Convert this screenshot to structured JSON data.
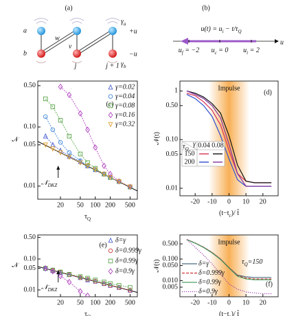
{
  "panel_a": {
    "label": "(a)",
    "row_a": "a",
    "row_b": "b",
    "w": "w",
    "v": "v",
    "site_j": "j",
    "site_j1": "j + 1",
    "gamma_a": [
      {
        "t": "γ"
      },
      {
        "sub": "a"
      }
    ],
    "gamma_b": [
      {
        "t": "γ"
      },
      {
        "sub": "b"
      }
    ],
    "plus_u": "+u",
    "minus_u": "−u"
  },
  "panel_b": {
    "label": "(b)",
    "equation": [
      {
        "t": "u(t) = u"
      },
      {
        "sub": "i"
      },
      {
        "t": " − t/τ"
      },
      {
        "sub": "Q"
      }
    ],
    "axis": "u",
    "u_f": [
      {
        "t": "u"
      },
      {
        "sub": "f"
      },
      {
        "t": " = −2"
      }
    ],
    "u_c": [
      {
        "t": "u"
      },
      {
        "sub": "c"
      },
      {
        "t": " = 0"
      }
    ],
    "u_i": [
      {
        "t": "u"
      },
      {
        "sub": "i"
      },
      {
        "t": " = 2"
      }
    ]
  },
  "chart_data": [
    {
      "type": "scatter",
      "panel_label": "(c)",
      "x_label": [
        {
          "t": "τ"
        },
        {
          "sub": "Q"
        }
      ],
      "y_label": [
        {
          "t": "𝒩"
        }
      ],
      "xlog": true,
      "ylog": true,
      "xlim": [
        7,
        700
      ],
      "ylim": [
        0.006,
        0.6
      ],
      "xticks": [
        20,
        50,
        100,
        200,
        500
      ],
      "yticks": [
        0.01,
        0.05,
        {
          "value": 0.1,
          "label": "0.10"
        },
        {
          "value": 0.5,
          "label": "0.50"
        }
      ],
      "legend": "upper right",
      "x": [
        10,
        14,
        20,
        30,
        50,
        70,
        100,
        150,
        200,
        300,
        500
      ],
      "series": [
        {
          "name": "γ=0.02",
          "color": "#4a5fd0",
          "marker": "triangle",
          "values": [
            0.07,
            0.05,
            0.04,
            0.032,
            0.026,
            0.022,
            0.019,
            0.016,
            0.014,
            0.012,
            0.0097
          ]
        },
        {
          "name": "γ=0.04",
          "color": "#3f86d8",
          "marker": "circle",
          "values": [
            0.15,
            0.09,
            0.055,
            0.037,
            0.027,
            0.022,
            0.019,
            0.016,
            0.014,
            0.012,
            0.0097
          ]
        },
        {
          "name": "γ=0.08",
          "color": "#5aa64a",
          "marker": "square",
          "values": [
            0.3,
            0.22,
            0.13,
            0.07,
            0.035,
            0.025,
            0.02,
            0.016,
            0.014,
            0.012,
            0.0097
          ]
        },
        {
          "name": "γ=0.16",
          "color": "#b040c0",
          "marker": "diamond",
          "values": [
            null,
            null,
            0.48,
            0.35,
            0.17,
            0.09,
            0.045,
            0.022,
            0.016,
            0.012,
            0.0097
          ]
        },
        {
          "name": "γ=0.32",
          "color": "#e0a030",
          "marker": "triangle-down",
          "values": [
            0.05,
            0.043,
            0.037,
            0.031,
            0.025,
            0.022,
            0.019,
            0.016,
            0.014,
            0.012,
            0.0097
          ]
        }
      ],
      "reference_line": {
        "x": [
          7,
          700
        ],
        "values": [
          0.057,
          0.0083
        ],
        "color": "#000000"
      },
      "annotation": [
        {
          "t": "𝒩"
        },
        {
          "sub": "DKZ"
        }
      ]
    },
    {
      "type": "line",
      "panel_label": "(d)",
      "x_label": [
        {
          "t": "(t−t"
        },
        {
          "sub": "c"
        },
        {
          "t": ")/ t̂"
        }
      ],
      "y_label": [
        {
          "t": "𝒩(t)"
        }
      ],
      "xlog": false,
      "ylog": true,
      "xlim": [
        -29,
        29
      ],
      "ylim": [
        0.007,
        1.6
      ],
      "xticks": [
        -20,
        -10,
        0,
        10,
        20
      ],
      "yticks": [
        0.01,
        0.05,
        {
          "value": 0.1,
          "label": "0.10"
        },
        {
          "value": 0.5,
          "label": "0.50"
        },
        1
      ],
      "impulse": {
        "label": "Impulse",
        "from": -12,
        "to": 12
      },
      "x": [
        -25,
        -20,
        -15,
        -10,
        -5,
        0,
        5,
        10,
        15,
        20,
        25
      ],
      "series": [
        {
          "color": "#d83050",
          "values": [
            0.9,
            0.8,
            0.6,
            0.4,
            0.2,
            0.06,
            0.02,
            0.014,
            0.013,
            0.013,
            0.013
          ]
        },
        {
          "color": "#111111",
          "values": [
            1.0,
            0.9,
            0.75,
            0.55,
            0.35,
            0.12,
            0.03,
            0.014,
            0.013,
            0.013,
            0.013
          ]
        },
        {
          "color": "#3050d0",
          "values": [
            0.85,
            0.7,
            0.5,
            0.3,
            0.12,
            0.04,
            0.015,
            0.011,
            0.011,
            0.011,
            0.011
          ]
        },
        {
          "color": "#8030a0",
          "values": [
            1.0,
            0.85,
            0.7,
            0.5,
            0.28,
            0.08,
            0.02,
            0.011,
            0.011,
            0.011,
            0.011
          ]
        }
      ],
      "legend_table": {
        "header_row": [
          {
            "t": "τ"
          },
          {
            "sub": "Q"
          }
        ],
        "header_col": "γ",
        "columns": [
          "0.04",
          "0.08"
        ],
        "rows": [
          "150",
          "200"
        ]
      }
    },
    {
      "type": "scatter",
      "panel_label": "(e)",
      "x_label": [
        {
          "t": "τ"
        },
        {
          "sub": "Q"
        }
      ],
      "y_label": [
        {
          "t": "𝒩"
        }
      ],
      "xlog": true,
      "ylog": true,
      "xlim": [
        7,
        700
      ],
      "ylim": [
        0.006,
        0.6
      ],
      "xticks": [
        20,
        50,
        100,
        200,
        500
      ],
      "yticks": [
        0.01,
        0.05,
        {
          "value": 0.1,
          "label": "0.10"
        },
        {
          "value": 0.5,
          "label": "0.50"
        }
      ],
      "legend": "upper right",
      "x": [
        10,
        14,
        20,
        30,
        50,
        70,
        100,
        150,
        200,
        300,
        500
      ],
      "series": [
        {
          "name": "δ=γ",
          "color": "#4a5fd0",
          "marker": "triangle",
          "values": [
            0.049,
            0.042,
            0.036,
            0.031,
            0.025,
            0.021,
            0.019,
            0.016,
            0.014,
            0.012,
            0.0097
          ]
        },
        {
          "name": "δ=0.999γ",
          "color": "#d03a3a",
          "marker": "circle",
          "values": [
            0.05,
            0.043,
            0.037,
            0.031,
            0.025,
            0.022,
            0.019,
            0.016,
            0.014,
            0.012,
            0.0097
          ]
        },
        {
          "name": "δ=0.99γ",
          "color": "#5aa64a",
          "marker": "square",
          "values": [
            0.05,
            0.044,
            0.038,
            0.032,
            0.027,
            0.024,
            0.021,
            0.018,
            0.016,
            0.014,
            0.012
          ]
        },
        {
          "name": "δ=0.9γ",
          "color": "#b040c0",
          "marker": "diamond",
          "values": [
            0.05,
            0.04,
            0.028,
            0.018,
            0.009,
            0.0065,
            null,
            null,
            null,
            null,
            null
          ]
        }
      ],
      "reference_line": {
        "x": [
          7,
          700
        ],
        "values": [
          0.057,
          0.0083
        ],
        "color": "#000000"
      },
      "annotation": [
        {
          "t": "𝒩"
        },
        {
          "sub": "DKZ"
        }
      ]
    },
    {
      "type": "line",
      "panel_label": "(f)",
      "x_label": [
        {
          "t": "(t−t"
        },
        {
          "sub": "c"
        },
        {
          "t": ")/ t̂"
        }
      ],
      "y_label": [
        {
          "t": "𝒩(t)"
        }
      ],
      "xlog": false,
      "ylog": true,
      "xlim": [
        -29,
        29
      ],
      "ylim": [
        0.0018,
        1.3
      ],
      "xticks": [
        -20,
        -10,
        0,
        10,
        20
      ],
      "yticks": [
        0.005,
        {
          "value": 0.01,
          "label": "0.010"
        },
        {
          "value": 0.05,
          "label": "0.050"
        },
        {
          "value": 0.1,
          "label": "0.100"
        },
        {
          "value": 0.5,
          "label": "0.500"
        }
      ],
      "impulse": {
        "label": "Impulse",
        "from": -12,
        "to": 12
      },
      "x": [
        -25,
        -20,
        -15,
        -10,
        -5,
        0,
        5,
        10,
        15,
        20,
        25
      ],
      "series": [
        {
          "name": "δ=γ",
          "color": "#4a6a80",
          "dash": "solid",
          "values": [
            0.8,
            0.55,
            0.35,
            0.2,
            0.1,
            0.04,
            0.018,
            0.015,
            0.014,
            0.014,
            0.014
          ]
        },
        {
          "name": "δ=0.999γ",
          "color": "#d03030",
          "dash": "dashed",
          "values": [
            0.8,
            0.55,
            0.35,
            0.2,
            0.1,
            0.04,
            0.017,
            0.013,
            0.012,
            0.012,
            0.012
          ]
        },
        {
          "name": "δ=0.99γ",
          "color": "#4aa060",
          "dash": "solid",
          "values": [
            0.78,
            0.54,
            0.34,
            0.19,
            0.095,
            0.038,
            0.016,
            0.012,
            0.011,
            0.011,
            0.011
          ]
        },
        {
          "name": "δ=0.9γ",
          "color": "#a040b0",
          "dash": "dotted",
          "values": [
            0.8,
            0.35,
            0.15,
            0.06,
            0.02,
            0.007,
            0.004,
            0.003,
            0.0027,
            0.0025,
            0.0025
          ]
        }
      ],
      "annotation": [
        {
          "t": "τ"
        },
        {
          "sub": "Q"
        },
        {
          "t": "=150"
        }
      ]
    }
  ]
}
